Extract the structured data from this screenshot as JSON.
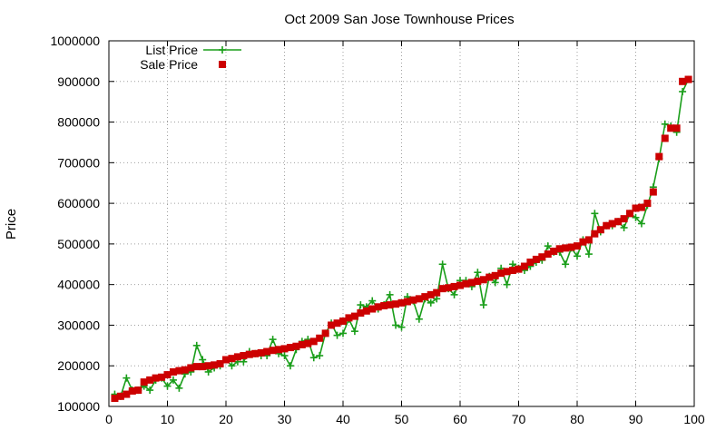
{
  "chart_data": {
    "type": "line",
    "title": "Oct 2009 San Jose Townhouse Prices",
    "xlabel": "",
    "ylabel": "Price",
    "xlim": [
      0,
      100
    ],
    "ylim": [
      100000,
      1000000
    ],
    "xticks": [
      0,
      10,
      20,
      30,
      40,
      50,
      60,
      70,
      80,
      90,
      100
    ],
    "yticks": [
      100000,
      200000,
      300000,
      400000,
      500000,
      600000,
      700000,
      800000,
      900000,
      1000000
    ],
    "grid": true,
    "legend_position": "top-left",
    "series": [
      {
        "name": "List Price",
        "style": "line+points",
        "marker": "plus",
        "color": "#1a9e1a",
        "x": [
          1,
          2,
          3,
          4,
          5,
          6,
          7,
          8,
          9,
          10,
          11,
          12,
          13,
          14,
          15,
          16,
          17,
          18,
          19,
          20,
          21,
          22,
          23,
          24,
          25,
          26,
          27,
          28,
          29,
          30,
          31,
          32,
          33,
          34,
          35,
          36,
          37,
          38,
          39,
          40,
          41,
          42,
          43,
          44,
          45,
          46,
          47,
          48,
          49,
          50,
          51,
          52,
          53,
          54,
          55,
          56,
          57,
          58,
          59,
          60,
          61,
          62,
          63,
          64,
          65,
          66,
          67,
          68,
          69,
          70,
          71,
          72,
          73,
          74,
          75,
          76,
          77,
          78,
          79,
          80,
          81,
          82,
          83,
          84,
          85,
          86,
          87,
          88,
          89,
          90,
          91,
          92,
          93,
          94,
          95,
          96,
          97,
          98,
          99
        ],
        "values": [
          130000,
          125000,
          170000,
          140000,
          140000,
          150000,
          140000,
          165000,
          170000,
          150000,
          165000,
          145000,
          180000,
          185000,
          250000,
          215000,
          185000,
          195000,
          200000,
          215000,
          200000,
          210000,
          210000,
          235000,
          230000,
          225000,
          225000,
          265000,
          230000,
          225000,
          200000,
          240000,
          260000,
          265000,
          220000,
          225000,
          280000,
          305000,
          275000,
          280000,
          315000,
          285000,
          350000,
          345000,
          360000,
          340000,
          350000,
          375000,
          300000,
          295000,
          370000,
          360000,
          315000,
          365000,
          355000,
          365000,
          450000,
          390000,
          375000,
          410000,
          410000,
          395000,
          430000,
          350000,
          420000,
          405000,
          440000,
          400000,
          450000,
          440000,
          435000,
          445000,
          455000,
          460000,
          495000,
          480000,
          480000,
          450000,
          490000,
          470000,
          510000,
          475000,
          575000,
          530000,
          545000,
          545000,
          555000,
          540000,
          575000,
          565000,
          550000,
          595000,
          640000,
          710000,
          795000,
          790000,
          775000,
          875000,
          905000
        ]
      },
      {
        "name": "Sale Price",
        "style": "points",
        "marker": "square",
        "color": "#cc0000",
        "x": [
          1,
          2,
          3,
          4,
          5,
          6,
          7,
          8,
          9,
          10,
          11,
          12,
          13,
          14,
          15,
          16,
          17,
          18,
          19,
          20,
          21,
          22,
          23,
          24,
          25,
          26,
          27,
          28,
          29,
          30,
          31,
          32,
          33,
          34,
          35,
          36,
          37,
          38,
          39,
          40,
          41,
          42,
          43,
          44,
          45,
          46,
          47,
          48,
          49,
          50,
          51,
          52,
          53,
          54,
          55,
          56,
          57,
          58,
          59,
          60,
          61,
          62,
          63,
          64,
          65,
          66,
          67,
          68,
          69,
          70,
          71,
          72,
          73,
          74,
          75,
          76,
          77,
          78,
          79,
          80,
          81,
          82,
          83,
          84,
          85,
          86,
          87,
          88,
          89,
          90,
          91,
          92,
          93,
          94,
          95,
          96,
          97,
          98,
          99
        ],
        "values": [
          120000,
          125000,
          130000,
          138000,
          140000,
          160000,
          165000,
          170000,
          172000,
          178000,
          185000,
          188000,
          190000,
          195000,
          198000,
          198000,
          200000,
          202000,
          205000,
          215000,
          218000,
          222000,
          225000,
          228000,
          230000,
          232000,
          235000,
          238000,
          240000,
          242000,
          245000,
          248000,
          252000,
          255000,
          260000,
          268000,
          280000,
          300000,
          305000,
          310000,
          318000,
          322000,
          330000,
          335000,
          340000,
          345000,
          348000,
          350000,
          352000,
          355000,
          358000,
          362000,
          365000,
          370000,
          375000,
          380000,
          390000,
          392000,
          395000,
          398000,
          402000,
          405000,
          408000,
          412000,
          418000,
          422000,
          428000,
          432000,
          435000,
          438000,
          445000,
          455000,
          462000,
          468000,
          475000,
          482000,
          488000,
          490000,
          492000,
          495000,
          505000,
          510000,
          525000,
          535000,
          545000,
          550000,
          555000,
          562000,
          575000,
          588000,
          590000,
          600000,
          628000,
          715000,
          760000,
          785000,
          785000,
          900000,
          905000
        ]
      }
    ]
  }
}
